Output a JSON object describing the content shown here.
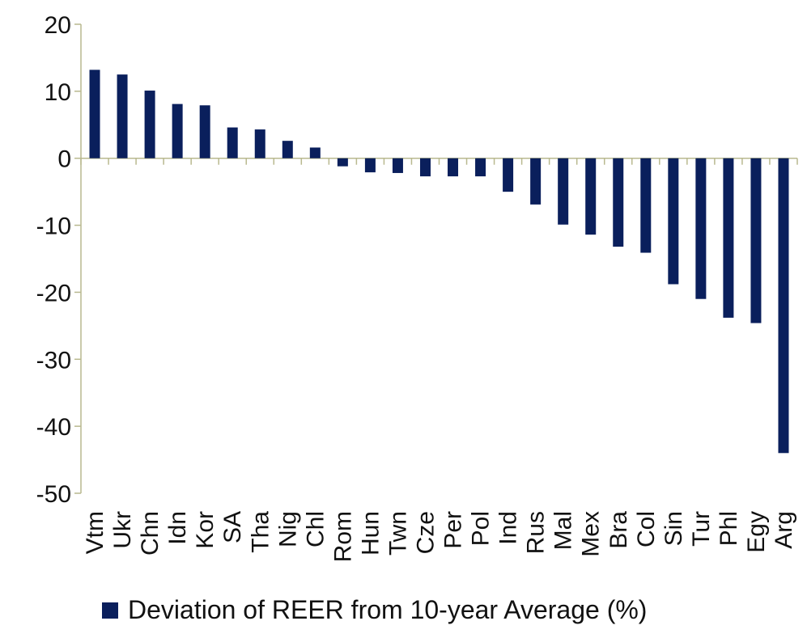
{
  "chart_data": {
    "type": "bar",
    "categories": [
      "Vtm",
      "Ukr",
      "Chn",
      "Idn",
      "Kor",
      "SA",
      "Tha",
      "Nig",
      "Chl",
      "Rom",
      "Hun",
      "Twn",
      "Cze",
      "Per",
      "Pol",
      "Ind",
      "Rus",
      "Mal",
      "Mex",
      "Bra",
      "Col",
      "Sin",
      "Tur",
      "Phl",
      "Egy",
      "Arg"
    ],
    "series": [
      {
        "name": "Deviation of REER from 10-year Average (%)",
        "color": "#0a1f5c",
        "values": [
          13.2,
          12.5,
          10.1,
          8.1,
          7.9,
          4.6,
          4.3,
          2.6,
          1.6,
          -1.2,
          -2.1,
          -2.2,
          -2.7,
          -2.7,
          -2.7,
          -5.0,
          -6.9,
          -9.9,
          -11.4,
          -13.2,
          -14.1,
          -18.8,
          -21.0,
          -23.8,
          -24.6,
          -44.0
        ]
      }
    ],
    "ylim": [
      -50,
      20
    ],
    "yticks": [
      20,
      10,
      0,
      -10,
      -20,
      -30,
      -40,
      -50
    ],
    "grid": false,
    "legend": "bottom"
  }
}
